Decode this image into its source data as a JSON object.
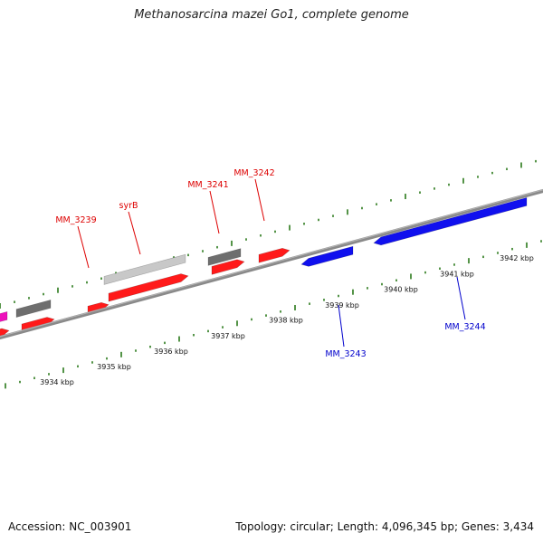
{
  "title": "Methanosarcina mazei Go1, complete genome",
  "footer": {
    "accession": "Accession: NC_003901",
    "summary": "Topology: circular; Length: 4,096,345 bp; Genes: 3,434"
  },
  "colors": {
    "backbone": "#8a8a8a",
    "tick": "#2a7a1a",
    "red": "#ff1a1a",
    "gray": "#6e6e6e",
    "lightgray": "#c8c8c8",
    "blue": "#1010ee",
    "magenta": "#ee11bb",
    "label_red": "#dd0000",
    "label_blue": "#0000cc"
  },
  "scale_labels": [
    "3934 kbp",
    "3935 kbp",
    "3936 kbp",
    "3937 kbp",
    "3938 kbp",
    "3939 kbp",
    "3940 kbp",
    "3941 kbp",
    "3942 kbp"
  ],
  "gene_labels": [
    {
      "name": "MM_3239",
      "color": "red"
    },
    {
      "name": "syrB",
      "color": "red"
    },
    {
      "name": "MM_3241",
      "color": "red"
    },
    {
      "name": "MM_3242",
      "color": "red"
    },
    {
      "name": "MM_3243",
      "color": "blue"
    },
    {
      "name": "MM_3244",
      "color": "blue"
    }
  ]
}
